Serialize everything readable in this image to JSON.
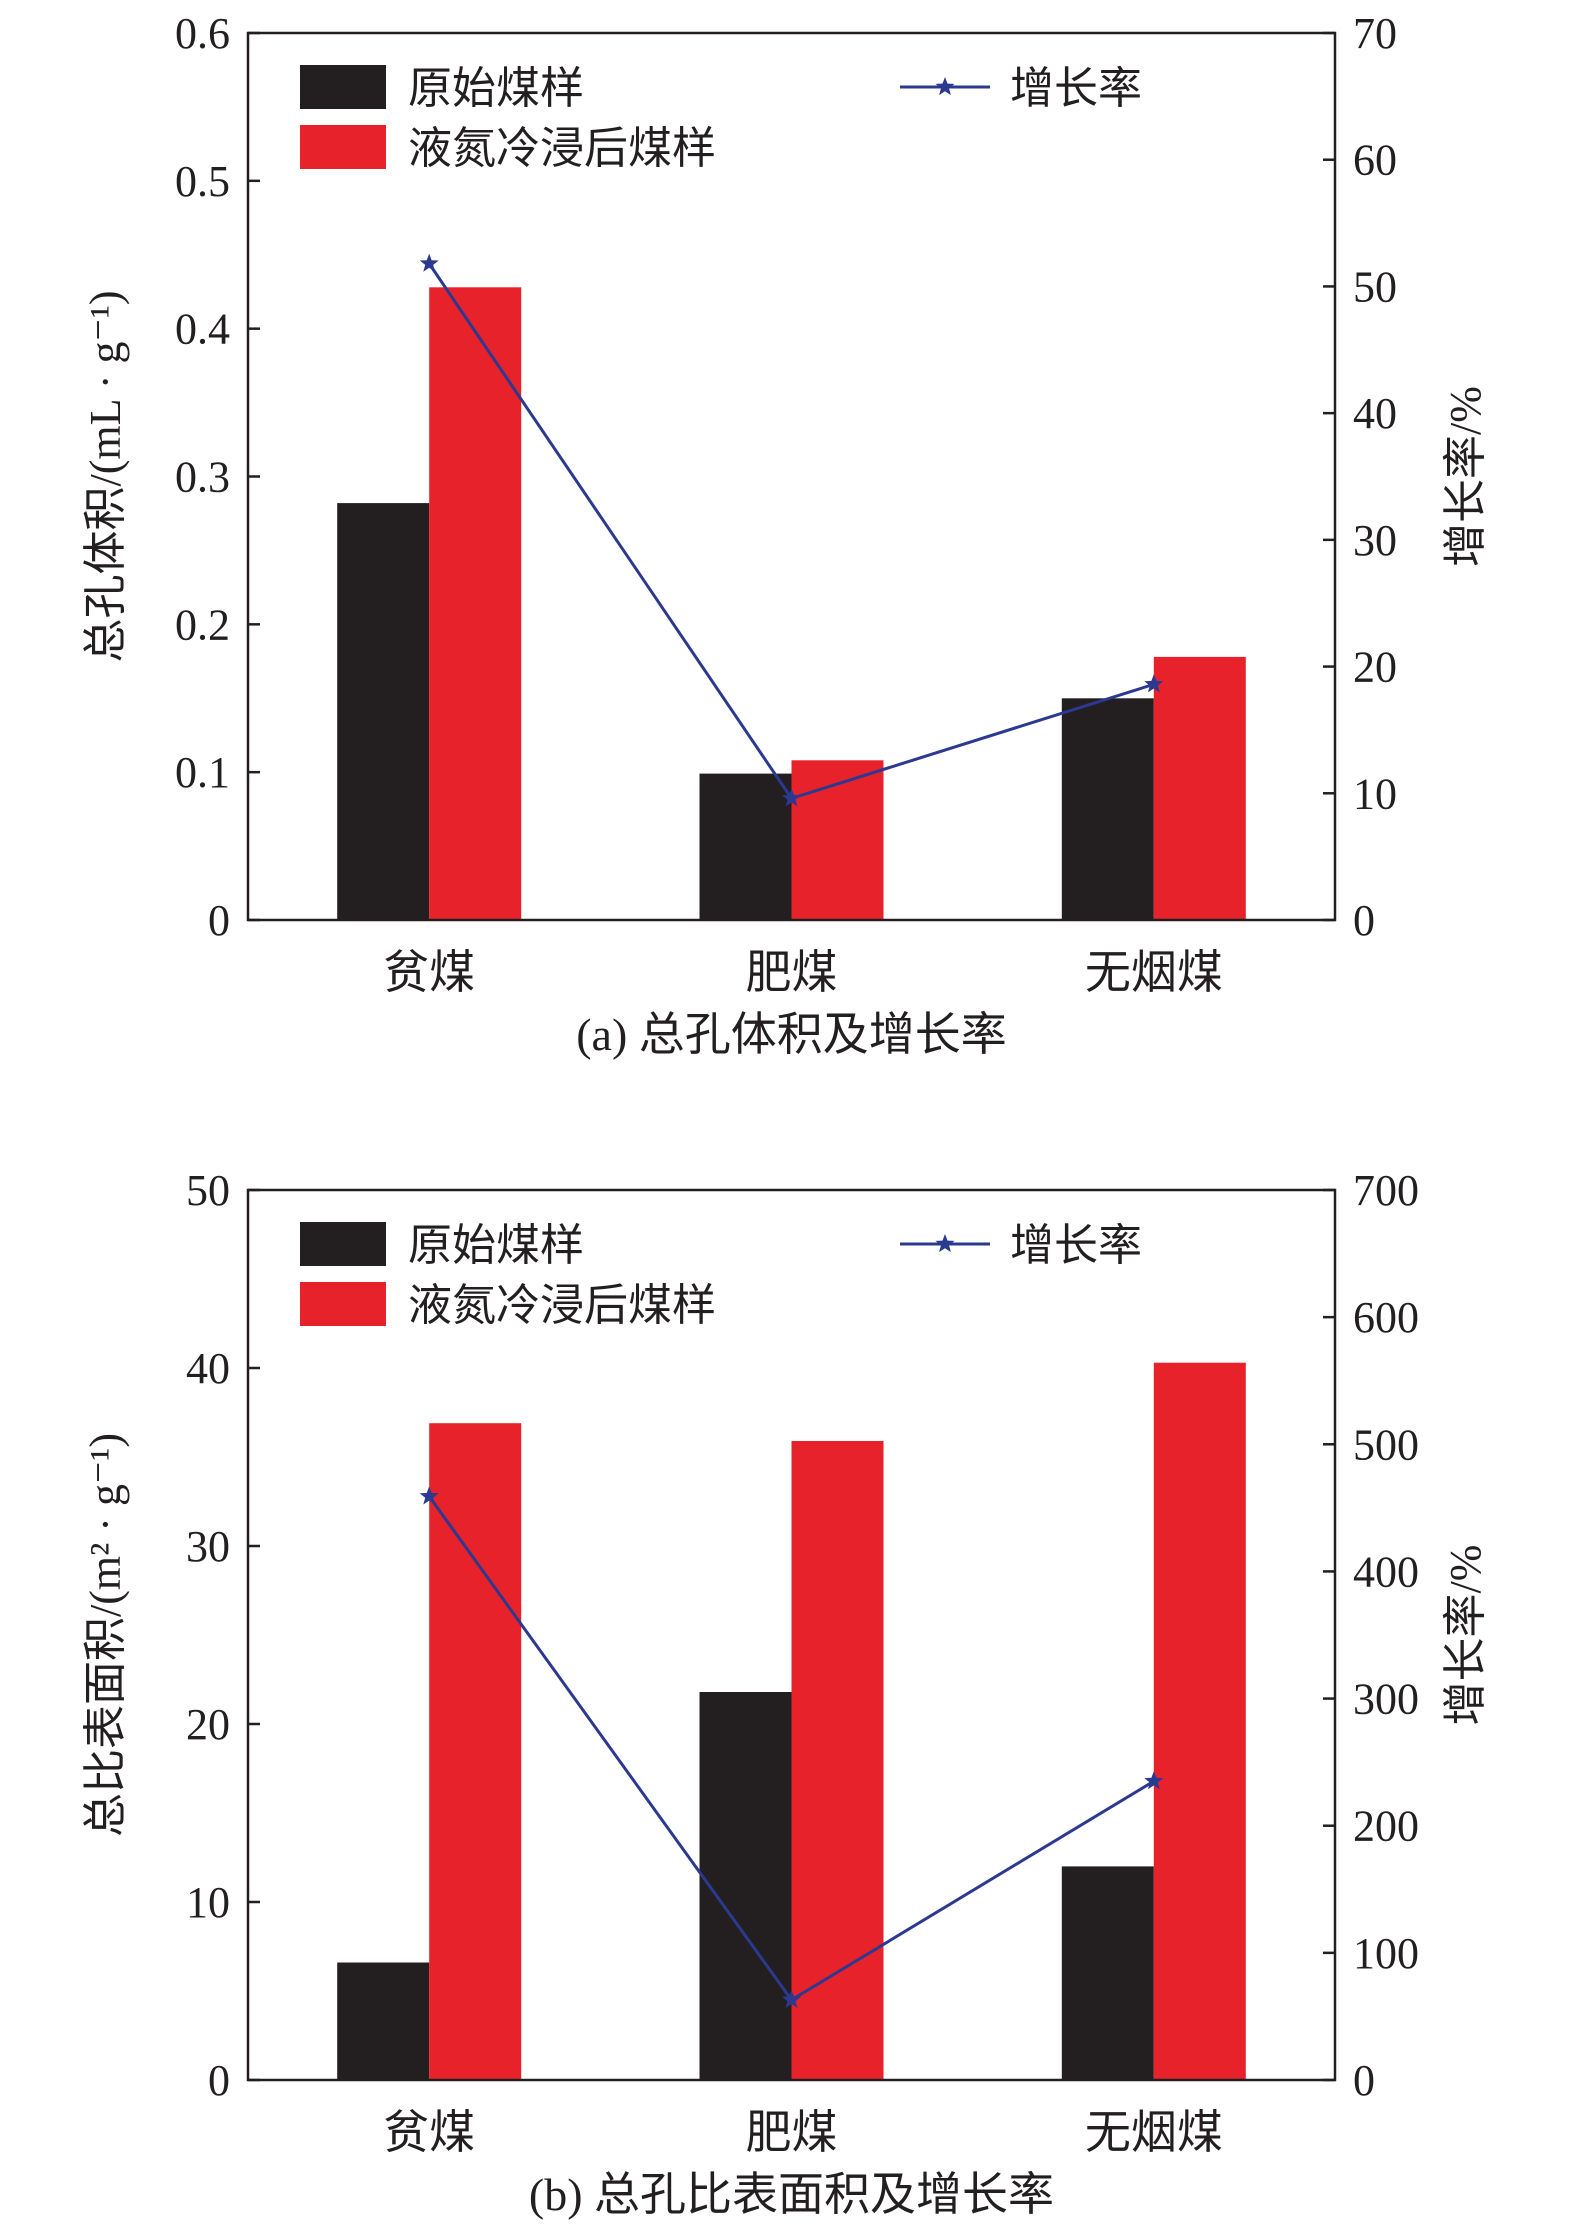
{
  "colors": {
    "original": "#231f20",
    "treated": "#e8222a",
    "growth_line": "#2b3990",
    "axis": "#231f20"
  },
  "chart_data": [
    {
      "type": "bar",
      "caption": "(a) 总孔体积及增长率",
      "categories": [
        "贫煤",
        "肥煤",
        "无烟煤"
      ],
      "ylabel": "总孔体积/(mL · g⁻¹)",
      "y2label": "增长率/%",
      "ylim": [
        0,
        0.6
      ],
      "yticks": [
        "0",
        "0.1",
        "0.2",
        "0.3",
        "0.4",
        "0.5",
        "0.6"
      ],
      "y2lim": [
        0,
        70
      ],
      "y2ticks": [
        "0",
        "10",
        "20",
        "30",
        "40",
        "50",
        "60",
        "70"
      ],
      "legend_placement": "top",
      "series": [
        {
          "name": "原始煤样",
          "kind": "bar",
          "values": [
            0.282,
            0.099,
            0.15
          ]
        },
        {
          "name": "液氮冷浸后煤样",
          "kind": "bar",
          "values": [
            0.428,
            0.108,
            0.178
          ]
        },
        {
          "name": "增长率",
          "kind": "line",
          "axis": "right",
          "values": [
            51.8,
            9.6,
            18.6
          ]
        }
      ]
    },
    {
      "type": "bar",
      "caption": "(b) 总孔比表面积及增长率",
      "categories": [
        "贫煤",
        "肥煤",
        "无烟煤"
      ],
      "ylabel": "总比表面积/(m² · g⁻¹)",
      "y2label": "增长率/%",
      "ylim": [
        0,
        50
      ],
      "yticks": [
        "0",
        "10",
        "20",
        "30",
        "40",
        "50"
      ],
      "y2lim": [
        0,
        700
      ],
      "y2ticks": [
        "0",
        "100",
        "200",
        "300",
        "400",
        "500",
        "600",
        "700"
      ],
      "legend_placement": "top",
      "series": [
        {
          "name": "原始煤样",
          "kind": "bar",
          "values": [
            6.6,
            21.8,
            12.0
          ]
        },
        {
          "name": "液氮冷浸后煤样",
          "kind": "bar",
          "values": [
            36.9,
            35.9,
            40.3
          ]
        },
        {
          "name": "增长率",
          "kind": "line",
          "axis": "right",
          "values": [
            459,
            63,
            235
          ]
        }
      ]
    }
  ]
}
